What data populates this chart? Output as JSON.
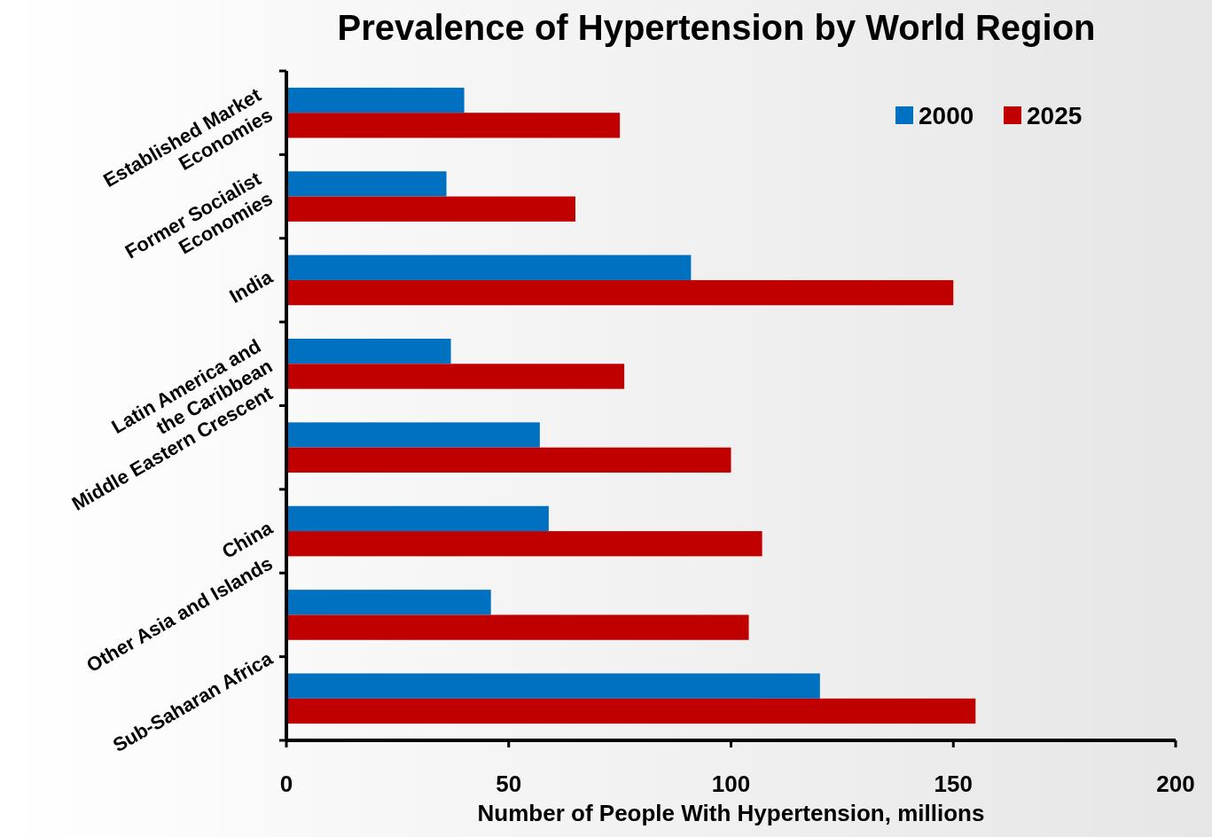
{
  "chart_data": {
    "type": "bar",
    "orientation": "horizontal",
    "title": "Prevalence of Hypertension by World Region",
    "xlabel": "Number of People With Hypertension, millions",
    "categories": [
      "Established Market Economies",
      "Former Socialist Economies",
      "India",
      "Latin America and the Caribbean",
      "Middle Eastern Crescent",
      "China",
      "Other Asia and Islands",
      "Sub-Saharan Africa"
    ],
    "series": [
      {
        "name": "2000",
        "color": "#0070c0",
        "values": [
          40,
          36,
          91,
          37,
          57,
          59,
          46,
          120
        ]
      },
      {
        "name": "2025",
        "color": "#c00000",
        "values": [
          75,
          65,
          150,
          76,
          100,
          107,
          104,
          155
        ]
      }
    ],
    "xlim": [
      0,
      200
    ],
    "xticks": [
      0,
      50,
      100,
      150,
      200
    ],
    "legend": "top right",
    "grid": false
  }
}
